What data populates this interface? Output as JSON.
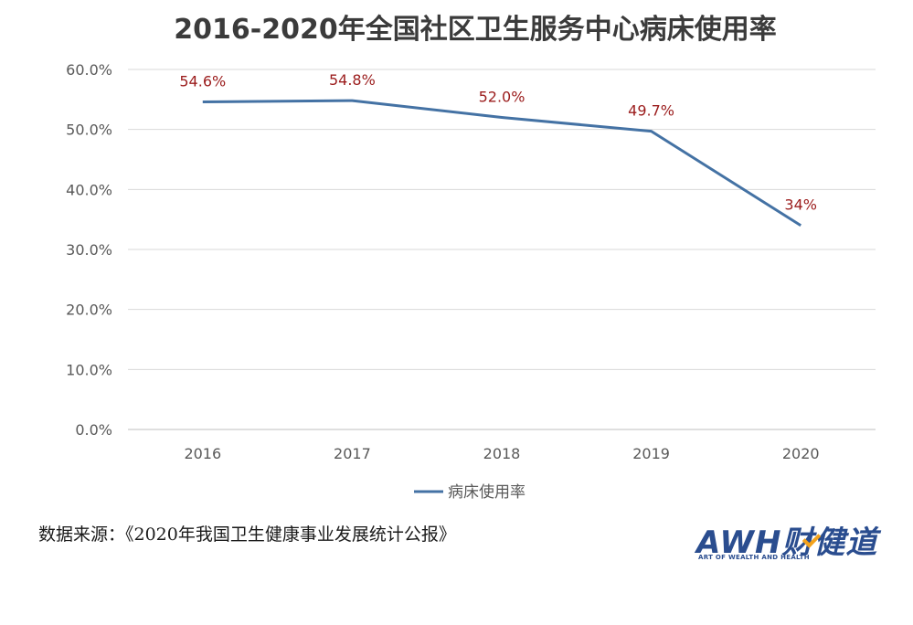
{
  "chart_data": {
    "type": "line",
    "title": "2016-2020年全国社区卫生服务中心病床使用率",
    "categories": [
      "2016",
      "2017",
      "2018",
      "2019",
      "2020"
    ],
    "series": [
      {
        "name": "病床使用率",
        "values": [
          54.6,
          54.8,
          52.0,
          49.7,
          34.0
        ],
        "labels": [
          "54.6%",
          "54.8%",
          "52.0%",
          "49.7%",
          "34%"
        ],
        "color": "#4472a4"
      }
    ],
    "ylim": [
      0,
      60
    ],
    "yticks": [
      "0.0%",
      "10.0%",
      "20.0%",
      "30.0%",
      "40.0%",
      "50.0%",
      "60.0%"
    ],
    "ytick_values": [
      0,
      10,
      20,
      30,
      40,
      50,
      60
    ],
    "grid": true,
    "legend": "bottom",
    "label_color": "#9b1c1c"
  },
  "footer": {
    "source": "数据来源：《2020年我国卫生健康事业发展统计公报》"
  },
  "logo": {
    "main": "AWH财健道",
    "sub": "ART OF WEALTH AND HEALTH"
  }
}
